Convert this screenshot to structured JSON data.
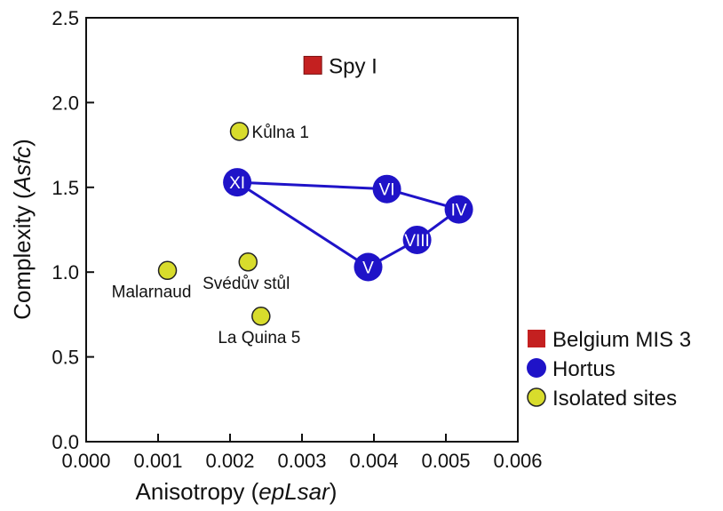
{
  "chart_data": {
    "type": "scatter",
    "xlabel_prefix": "Anisotropy (",
    "xlabel_italic": "epLsar",
    "xlabel_suffix": ")",
    "ylabel_prefix": "Complexity (",
    "ylabel_italic": "Asfc",
    "ylabel_suffix": ")",
    "xlim": [
      0,
      0.006
    ],
    "ylim": [
      0,
      2.5
    ],
    "x_ticks": [
      "0.000",
      "0.001",
      "0.002",
      "0.003",
      "0.004",
      "0.005",
      "0.006"
    ],
    "y_ticks": [
      "0.0",
      "0.5",
      "1.0",
      "1.5",
      "2.0",
      "2.5"
    ],
    "grid": false,
    "legend_position": "bottom-right",
    "series": [
      {
        "name": "Belgium MIS 3",
        "marker": "square",
        "color": "#c42020",
        "points": [
          {
            "x": 0.00315,
            "y": 2.22,
            "label": "Spy I",
            "label_side": "right"
          }
        ]
      },
      {
        "name": "Hortus",
        "marker": "circle",
        "color": "#1f13c8",
        "connected": true,
        "points": [
          {
            "x": 0.0021,
            "y": 1.53,
            "label": "XI"
          },
          {
            "x": 0.00418,
            "y": 1.49,
            "label": "VI"
          },
          {
            "x": 0.00518,
            "y": 1.37,
            "label": "IV"
          },
          {
            "x": 0.0046,
            "y": 1.19,
            "label": "VIII"
          },
          {
            "x": 0.00392,
            "y": 1.03,
            "label": "V"
          }
        ]
      },
      {
        "name": "Isolated sites",
        "marker": "circle",
        "color": "#d8dc2c",
        "points": [
          {
            "x": 0.00213,
            "y": 1.83,
            "label": "Kůlna 1",
            "label_side": "right"
          },
          {
            "x": 0.00113,
            "y": 1.01,
            "label": "Malarnaud",
            "label_side": "below-left"
          },
          {
            "x": 0.00225,
            "y": 1.06,
            "label": "Svédův stůl",
            "label_side": "below"
          },
          {
            "x": 0.00243,
            "y": 0.74,
            "label": "La Quina 5",
            "label_side": "below"
          }
        ]
      }
    ]
  }
}
